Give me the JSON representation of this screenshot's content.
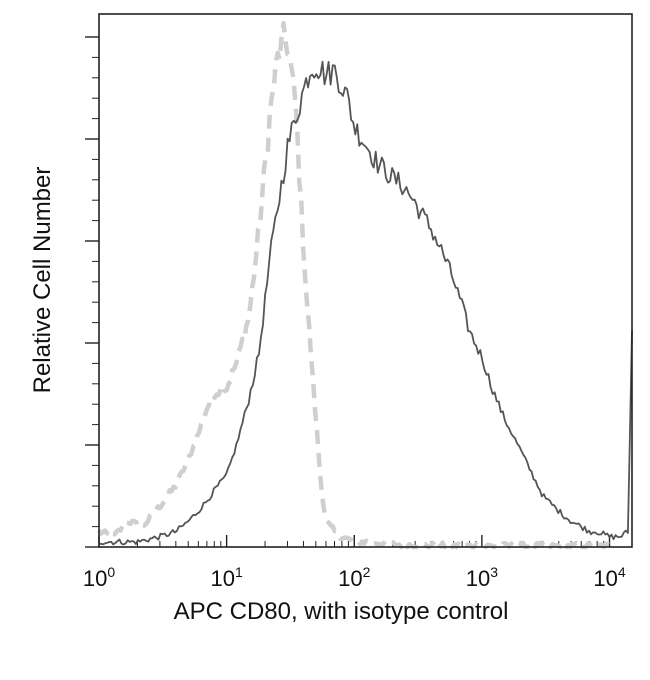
{
  "chart_data": {
    "type": "line",
    "title": "",
    "xlabel": "APC CD80, with isotype control",
    "ylabel": "Relative Cell Number",
    "x_scale": "log",
    "xlim": [
      1,
      15000
    ],
    "ylim": [
      0,
      1
    ],
    "x_ticks": [
      {
        "base": "10",
        "exp": "0",
        "value": 1
      },
      {
        "base": "10",
        "exp": "1",
        "value": 10
      },
      {
        "base": "10",
        "exp": "2",
        "value": 100
      },
      {
        "base": "10",
        "exp": "3",
        "value": 1000
      },
      {
        "base": "10",
        "exp": "4",
        "value": 10000
      }
    ],
    "y_tick_count": 5,
    "grid": false,
    "legend": "none",
    "series": [
      {
        "style": "dashed",
        "color": "#cfcfcf",
        "x": [
          1,
          1.3,
          1.7,
          2.2,
          3,
          4,
          5,
          6,
          7,
          8,
          10,
          12,
          15,
          18,
          20,
          22,
          25,
          28,
          30,
          32,
          35,
          38,
          42,
          45,
          50,
          55,
          60,
          70,
          80,
          100,
          130,
          200,
          400,
          1000,
          3000,
          10000
        ],
        "y": [
          0.03,
          0.02,
          0.05,
          0.04,
          0.08,
          0.12,
          0.17,
          0.22,
          0.27,
          0.3,
          0.31,
          0.36,
          0.45,
          0.62,
          0.74,
          0.85,
          0.95,
          0.99,
          0.98,
          0.93,
          0.85,
          0.68,
          0.5,
          0.4,
          0.25,
          0.12,
          0.05,
          0.03,
          0.02,
          0.01,
          0.01,
          0.005,
          0.003,
          0.002,
          0.002,
          0.002
        ]
      },
      {
        "style": "solid",
        "color": "#555555",
        "x": [
          1,
          1.5,
          2,
          3,
          4,
          5,
          6,
          7,
          8,
          10,
          12,
          15,
          18,
          20,
          22,
          25,
          28,
          30,
          35,
          40,
          45,
          50,
          55,
          60,
          70,
          80,
          90,
          100,
          120,
          150,
          200,
          250,
          300,
          400,
          500,
          600,
          700,
          800,
          1000,
          1200,
          1500,
          2000,
          2500,
          3000,
          4000,
          5000,
          6000,
          7000,
          8000,
          10000,
          12000,
          14000,
          15000
        ],
        "y": [
          0.01,
          0.01,
          0.01,
          0.02,
          0.03,
          0.05,
          0.07,
          0.09,
          0.11,
          0.14,
          0.2,
          0.29,
          0.38,
          0.48,
          0.57,
          0.66,
          0.73,
          0.78,
          0.84,
          0.89,
          0.93,
          0.94,
          0.93,
          0.92,
          0.93,
          0.9,
          0.87,
          0.82,
          0.79,
          0.75,
          0.72,
          0.7,
          0.67,
          0.62,
          0.57,
          0.52,
          0.47,
          0.42,
          0.37,
          0.31,
          0.25,
          0.19,
          0.14,
          0.1,
          0.07,
          0.05,
          0.04,
          0.03,
          0.03,
          0.02,
          0.02,
          0.03,
          0.43
        ]
      }
    ]
  }
}
